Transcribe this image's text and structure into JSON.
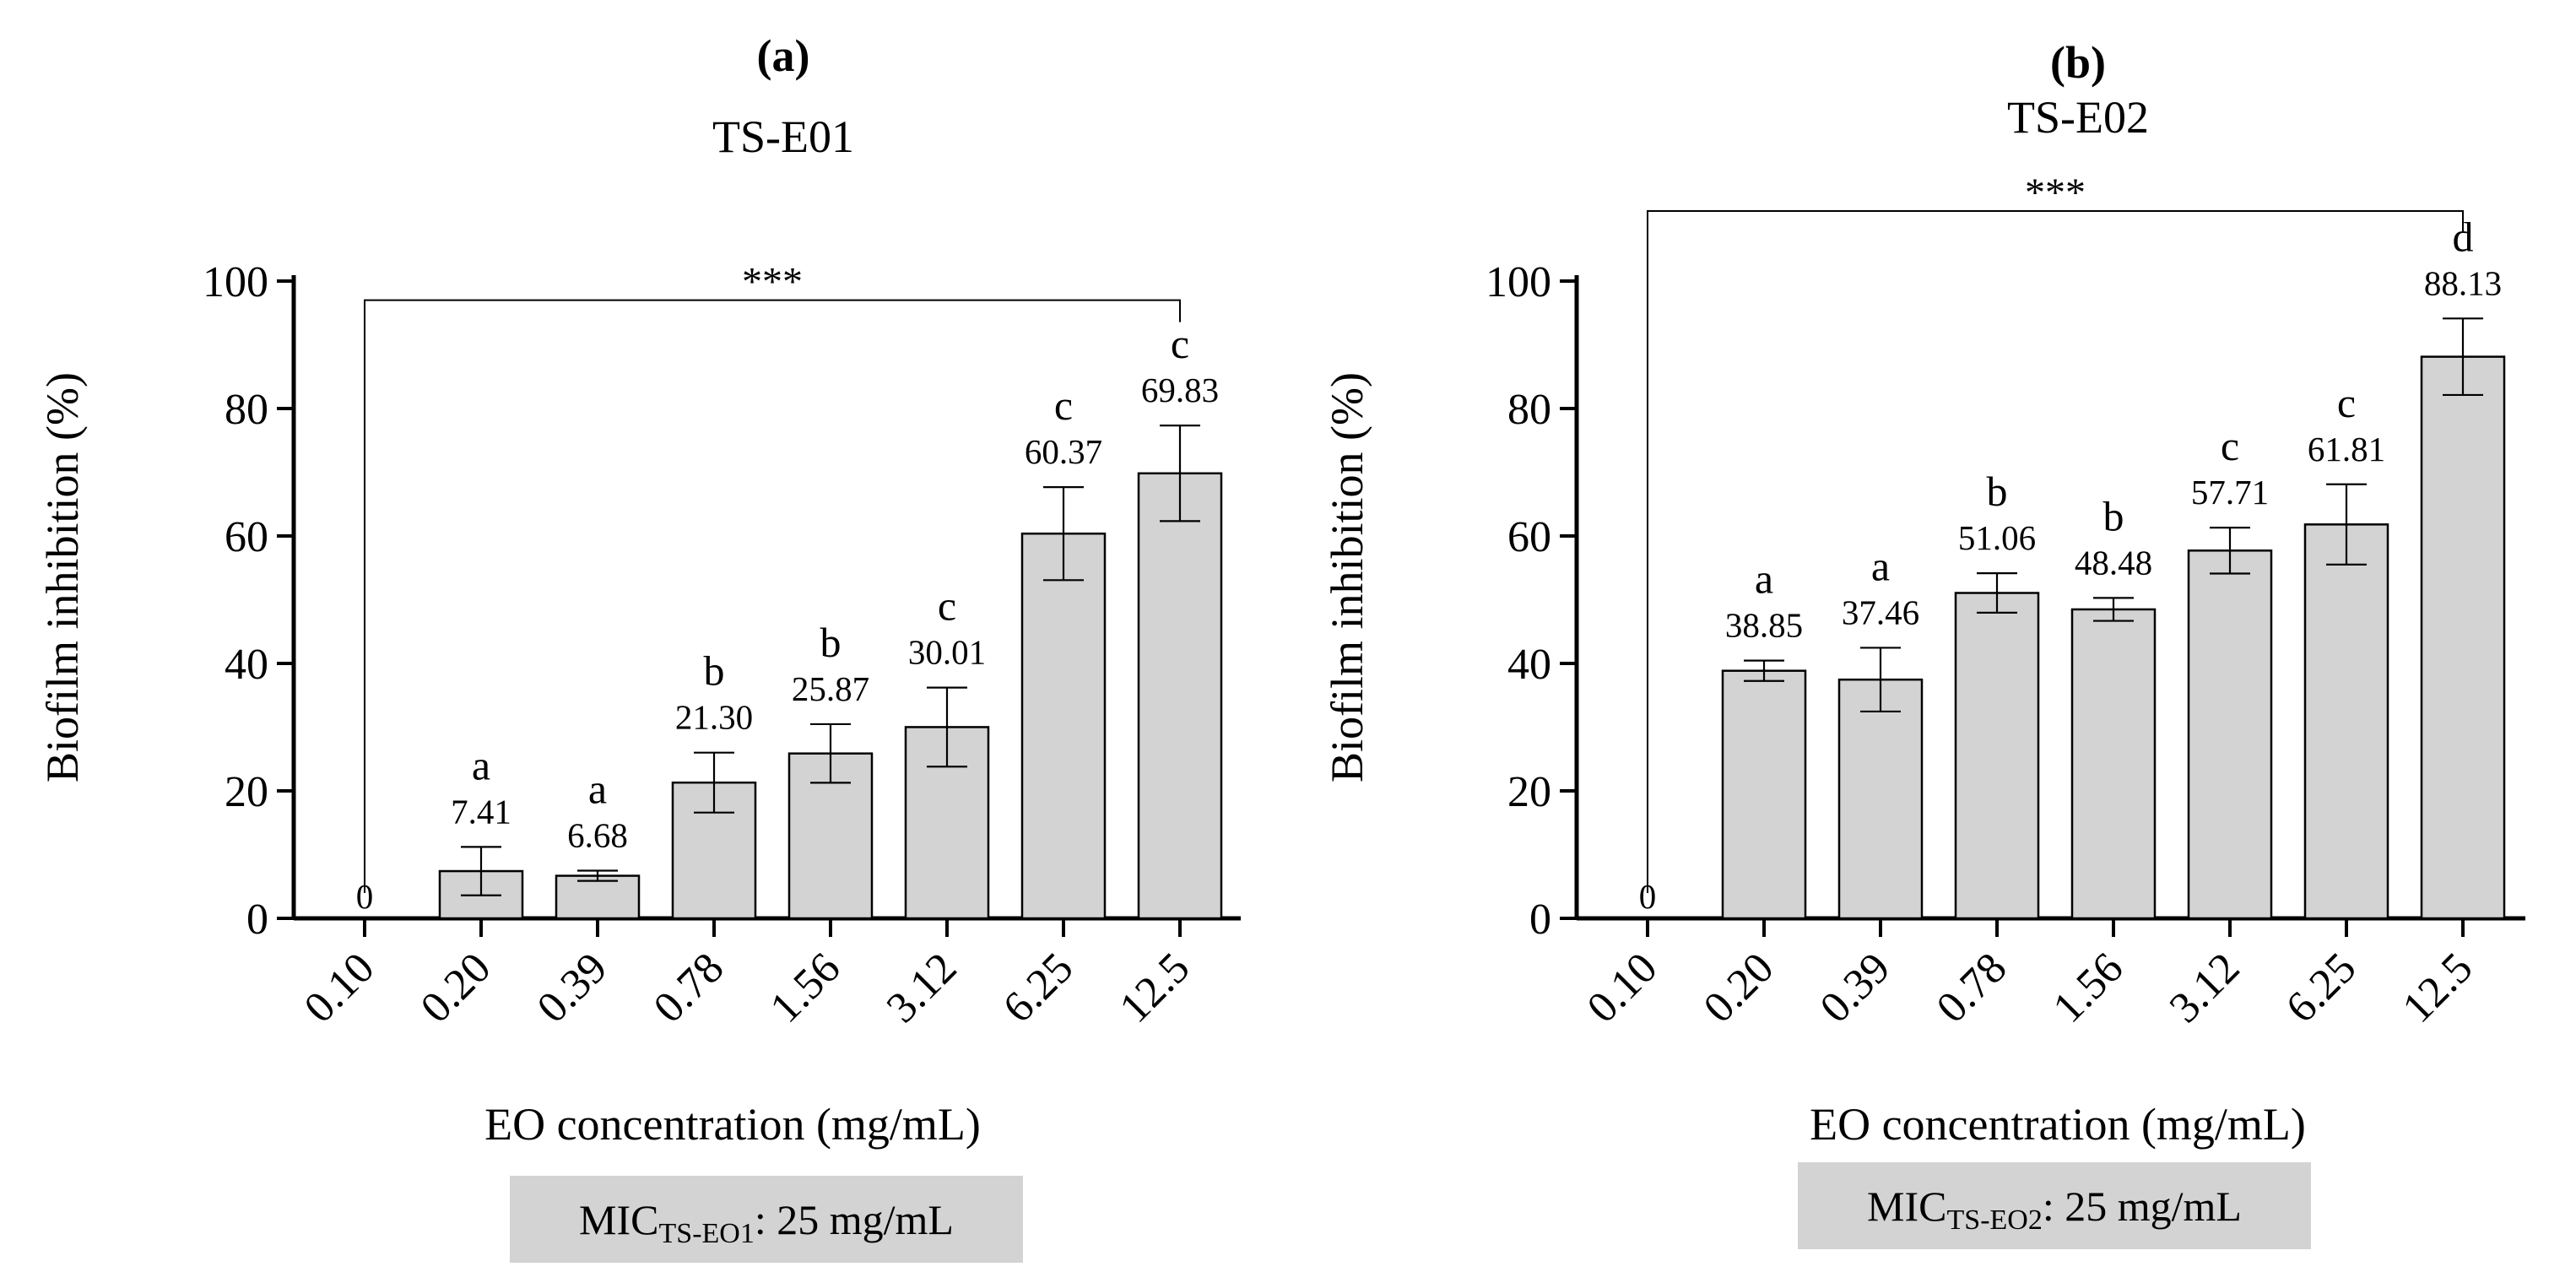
{
  "chart_data": [
    {
      "type": "bar",
      "panel_label": "(a)",
      "title": "TS-E01",
      "xlabel": "EO concentration (mg/mL)",
      "ylabel": "Biofilm inhibition (%)",
      "ylim": [
        0,
        100
      ],
      "yticks": [
        "0",
        "20",
        "40",
        "60",
        "80",
        "100"
      ],
      "categories": [
        "0.10",
        "0.20",
        "0.39",
        "0.78",
        "1.56",
        "3.12",
        "6.25",
        "12.5"
      ],
      "values": [
        0,
        7.41,
        6.68,
        21.3,
        25.87,
        30.01,
        60.37,
        69.83
      ],
      "value_labels": [
        "0",
        "7.41",
        "6.68",
        "21.30",
        "25.87",
        "30.01",
        "60.37",
        "69.83"
      ],
      "errors": [
        0,
        3.8,
        0.8,
        4.7,
        4.6,
        6.2,
        7.3,
        7.5
      ],
      "letters": [
        "",
        "a",
        "a",
        "b",
        "b",
        "c",
        "c",
        "c"
      ],
      "significance": {
        "label": "***",
        "from": "0.10",
        "to": "12.5",
        "y": 97
      },
      "mic": {
        "prefix": "MIC",
        "subscript": "TS-EO1",
        "suffix": ": 25 mg/mL"
      }
    },
    {
      "type": "bar",
      "panel_label": "(b)",
      "title": "TS-E02",
      "xlabel": "EO concentration (mg/mL)",
      "ylabel": "Biofilm inhibition (%)",
      "ylim": [
        0,
        100
      ],
      "yticks": [
        "0",
        "20",
        "40",
        "60",
        "80",
        "100"
      ],
      "categories": [
        "0.10",
        "0.20",
        "0.39",
        "0.78",
        "1.56",
        "3.12",
        "6.25",
        "12.5"
      ],
      "values": [
        0,
        38.85,
        37.46,
        51.06,
        48.48,
        57.71,
        61.81,
        88.13
      ],
      "value_labels": [
        "0",
        "38.85",
        "37.46",
        "51.06",
        "48.48",
        "57.71",
        "61.81",
        "88.13"
      ],
      "errors": [
        0,
        1.6,
        5.0,
        3.1,
        1.8,
        3.6,
        6.3,
        6.0
      ],
      "letters": [
        "",
        "a",
        "a",
        "b",
        "b",
        "c",
        "c",
        "d"
      ],
      "significance": {
        "label": "***",
        "from": "0.10",
        "to": "12.5",
        "y": 111
      },
      "mic": {
        "prefix": "MIC",
        "subscript": "TS-EO2",
        "suffix": ": 25 mg/mL"
      }
    }
  ]
}
